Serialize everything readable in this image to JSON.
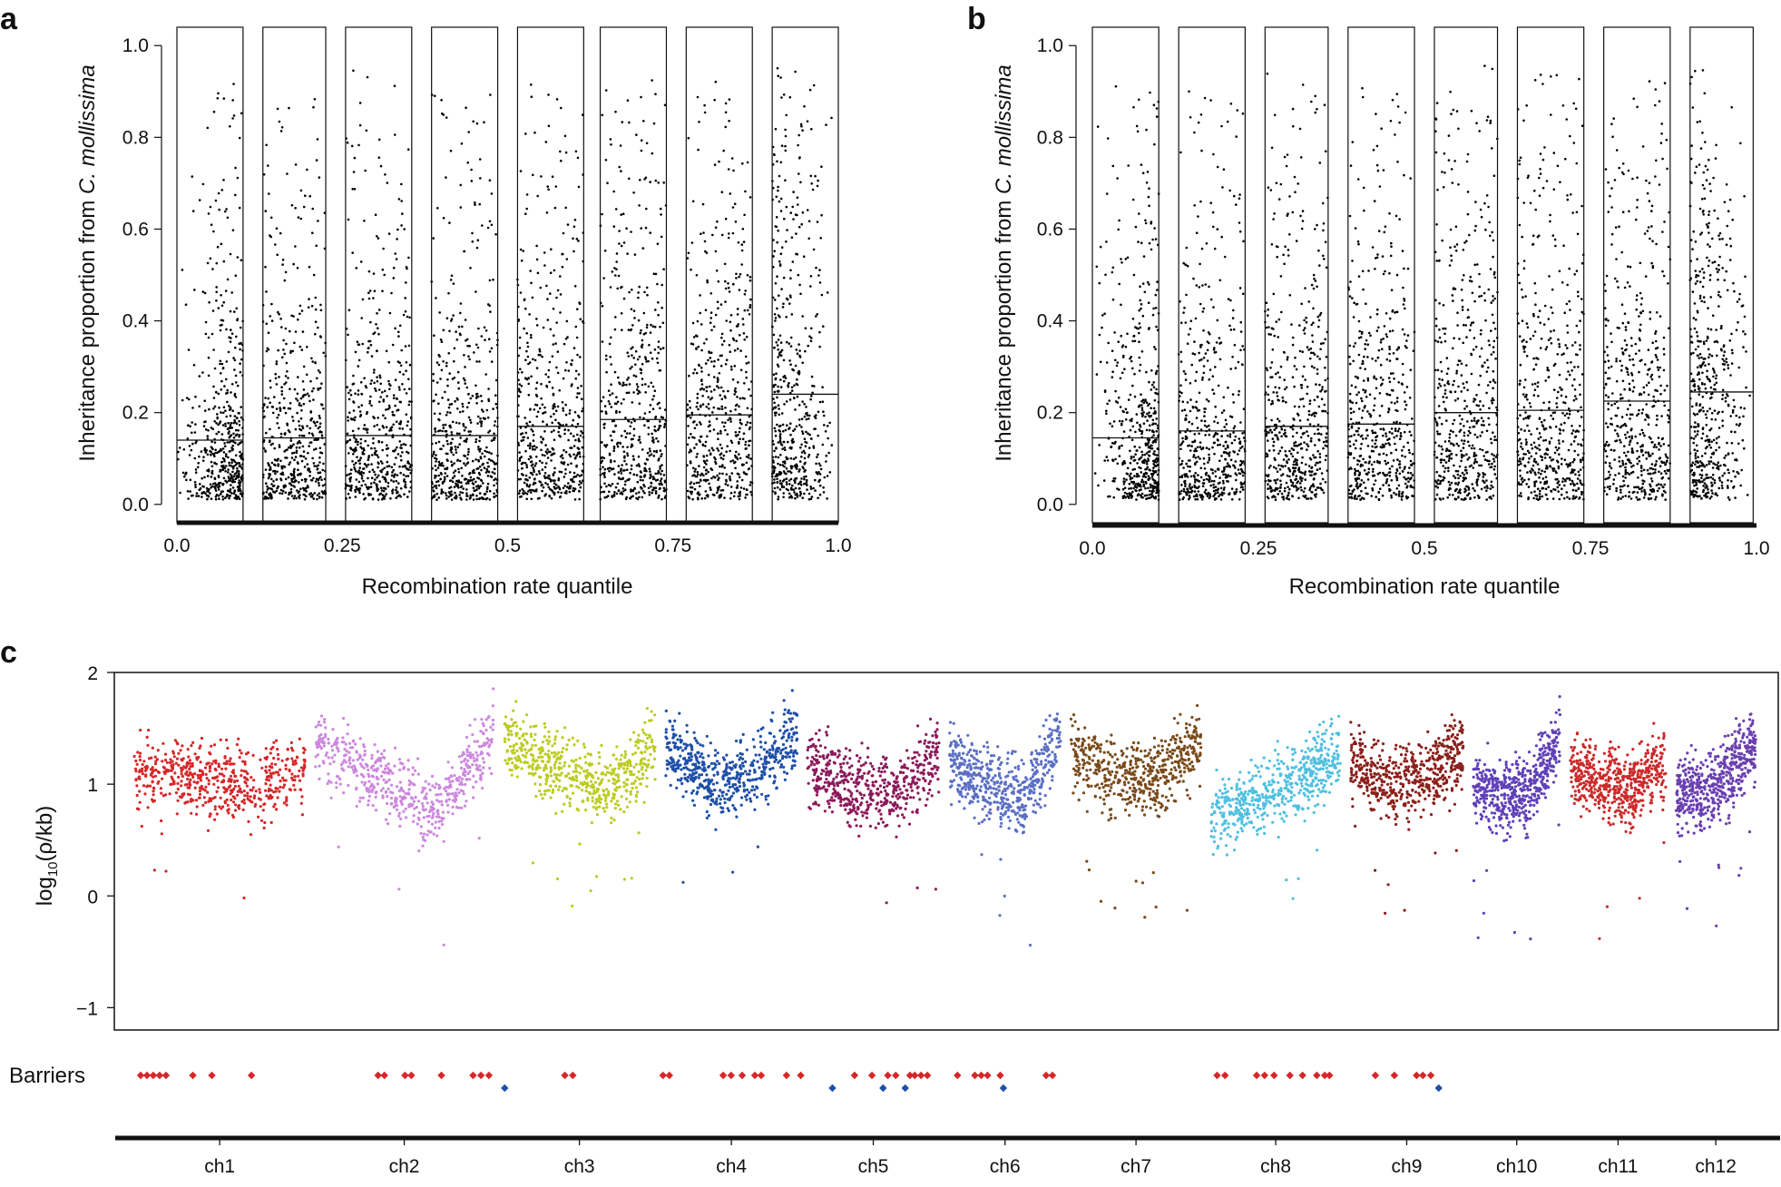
{
  "panel_labels": {
    "a": "a",
    "b": "b",
    "c": "c"
  },
  "chart_data": [
    {
      "panel": "a",
      "type": "scatter",
      "description_series": "points per recombination-rate octile with median line",
      "ylabel_prefix": "Inheritance proportion from ",
      "ylabel_species": "C. mollissima",
      "xlabel": "Recombination rate quantile",
      "xlim": [
        0.0,
        1.0
      ],
      "ylim": [
        -0.04,
        1.04
      ],
      "xticks": [
        "0.0",
        "0.25",
        "0.5",
        "0.75",
        "1.0"
      ],
      "xtick_values": [
        0.0,
        0.25,
        0.5,
        0.75,
        1.0
      ],
      "yticks": [
        "0.0",
        "0.2",
        "0.4",
        "0.6",
        "0.8",
        "1.0"
      ],
      "ytick_values": [
        0.0,
        0.2,
        0.4,
        0.6,
        0.8,
        1.0
      ],
      "bins": [
        {
          "x_range": [
            0.0,
            0.1
          ],
          "median": 0.14
        },
        {
          "x_range": [
            0.13,
            0.225
          ],
          "median": 0.145
        },
        {
          "x_range": [
            0.255,
            0.355
          ],
          "median": 0.15
        },
        {
          "x_range": [
            0.385,
            0.485
          ],
          "median": 0.15
        },
        {
          "x_range": [
            0.515,
            0.615
          ],
          "median": 0.17
        },
        {
          "x_range": [
            0.64,
            0.74
          ],
          "median": 0.185
        },
        {
          "x_range": [
            0.77,
            0.87
          ],
          "median": 0.195
        },
        {
          "x_range": [
            0.9,
            1.0
          ],
          "median": 0.24
        }
      ],
      "point_color": "#000000"
    },
    {
      "panel": "b",
      "type": "scatter",
      "ylabel_prefix": "Inheritance proportion from ",
      "ylabel_species": "C. mollissima",
      "xlabel": "Recombination rate quantile",
      "xlim": [
        0.0,
        1.0
      ],
      "ylim": [
        -0.04,
        1.04
      ],
      "xticks": [
        "0.0",
        "0.25",
        "0.5",
        "0.75",
        "1.0"
      ],
      "xtick_values": [
        0.0,
        0.25,
        0.5,
        0.75,
        1.0
      ],
      "yticks": [
        "0.0",
        "0.2",
        "0.4",
        "0.6",
        "0.8",
        "1.0"
      ],
      "ytick_values": [
        0.0,
        0.2,
        0.4,
        0.6,
        0.8,
        1.0
      ],
      "bins": [
        {
          "x_range": [
            0.0,
            0.1
          ],
          "median": 0.145
        },
        {
          "x_range": [
            0.13,
            0.23
          ],
          "median": 0.16
        },
        {
          "x_range": [
            0.26,
            0.355
          ],
          "median": 0.17
        },
        {
          "x_range": [
            0.385,
            0.485
          ],
          "median": 0.175
        },
        {
          "x_range": [
            0.515,
            0.61
          ],
          "median": 0.2
        },
        {
          "x_range": [
            0.64,
            0.74
          ],
          "median": 0.205
        },
        {
          "x_range": [
            0.77,
            0.87
          ],
          "median": 0.225
        },
        {
          "x_range": [
            0.9,
            0.995
          ],
          "median": 0.245
        }
      ],
      "point_color": "#000000"
    },
    {
      "panel": "c",
      "type": "scatter",
      "ylabel": "log10(ρ/kb)",
      "ylabel_base": "log",
      "ylabel_sub": "10",
      "ylabel_rest": "(ρ/kb)",
      "ylim": [
        -1.2,
        2.0
      ],
      "yticks": [
        "2",
        "1",
        "0",
        "−1"
      ],
      "ytick_values": [
        2,
        1,
        0,
        -1
      ],
      "chromosomes": [
        {
          "name": "ch1",
          "color": "#d62728",
          "x_range": [
            0.0,
            0.118
          ],
          "profile": [
            1.15,
            1.05,
            1.0,
            1.15
          ]
        },
        {
          "name": "ch2",
          "color": "#cc88dd",
          "x_range": [
            0.125,
            0.248
          ],
          "profile": [
            1.35,
            1.05,
            0.75,
            1.45
          ]
        },
        {
          "name": "ch3",
          "color": "#bccc1e",
          "x_range": [
            0.255,
            0.36
          ],
          "profile": [
            1.4,
            1.15,
            0.95,
            1.35
          ]
        },
        {
          "name": "ch4",
          "color": "#1f4fa8",
          "x_range": [
            0.367,
            0.458
          ],
          "profile": [
            1.35,
            1.0,
            1.1,
            1.45
          ]
        },
        {
          "name": "ch5",
          "color": "#8b1a5a",
          "x_range": [
            0.465,
            0.556
          ],
          "profile": [
            1.2,
            0.95,
            0.9,
            1.25
          ]
        },
        {
          "name": "ch6",
          "color": "#5b6fc4",
          "x_range": [
            0.563,
            0.64
          ],
          "profile": [
            1.2,
            1.0,
            0.85,
            1.45
          ]
        },
        {
          "name": "ch7",
          "color": "#7a4a1a",
          "x_range": [
            0.647,
            0.737
          ],
          "profile": [
            1.3,
            1.05,
            1.05,
            1.35
          ]
        },
        {
          "name": "ch8",
          "color": "#4fc0e0",
          "x_range": [
            0.744,
            0.833
          ],
          "profile": [
            0.7,
            0.85,
            1.05,
            1.3
          ]
        },
        {
          "name": "ch9",
          "color": "#8b1f1a",
          "x_range": [
            0.84,
            0.918
          ],
          "profile": [
            1.25,
            0.95,
            1.05,
            1.3
          ]
        },
        {
          "name": "ch10",
          "color": "#6040b8",
          "x_range": [
            0.925,
            0.985
          ],
          "profile": [
            1.0,
            0.85,
            0.95,
            1.4
          ]
        },
        {
          "name": "ch11",
          "color": "#cc2a2a",
          "x_range": [
            0.992,
            1.058
          ],
          "profile": [
            1.15,
            1.0,
            0.95,
            1.25
          ]
        },
        {
          "name": "ch12",
          "color": "#6a3fb0",
          "x_range": [
            1.065,
            1.12
          ],
          "profile": [
            0.95,
            0.9,
            1.1,
            1.4
          ]
        }
      ],
      "barriers_label": "Barriers",
      "barrier_colors": {
        "red": "#d62728",
        "blue": "#1f4fa8"
      },
      "barriers_red": [
        0.0,
        0.004,
        0.008,
        0.012,
        0.016,
        0.033,
        0.045,
        0.07,
        0.15,
        0.154,
        0.167,
        0.171,
        0.19,
        0.21,
        0.215,
        0.22,
        0.268,
        0.273,
        0.33,
        0.334,
        0.368,
        0.373,
        0.38,
        0.388,
        0.392,
        0.408,
        0.417,
        0.451,
        0.462,
        0.472,
        0.477,
        0.486,
        0.489,
        0.493,
        0.497,
        0.516,
        0.527,
        0.531,
        0.535,
        0.543,
        0.572,
        0.576,
        0.68,
        0.685,
        0.705,
        0.71,
        0.716,
        0.726,
        0.734,
        0.743,
        0.748,
        0.751,
        0.78,
        0.792,
        0.806,
        0.81,
        0.815
      ],
      "barriers_blue": [
        0.23,
        0.437,
        0.469,
        0.483,
        0.545,
        0.82
      ]
    }
  ],
  "chromosome_labels": [
    "ch1",
    "ch2",
    "ch3",
    "ch4",
    "ch5",
    "ch6",
    "ch7",
    "ch8",
    "ch9",
    "ch10",
    "ch11",
    "ch12"
  ]
}
